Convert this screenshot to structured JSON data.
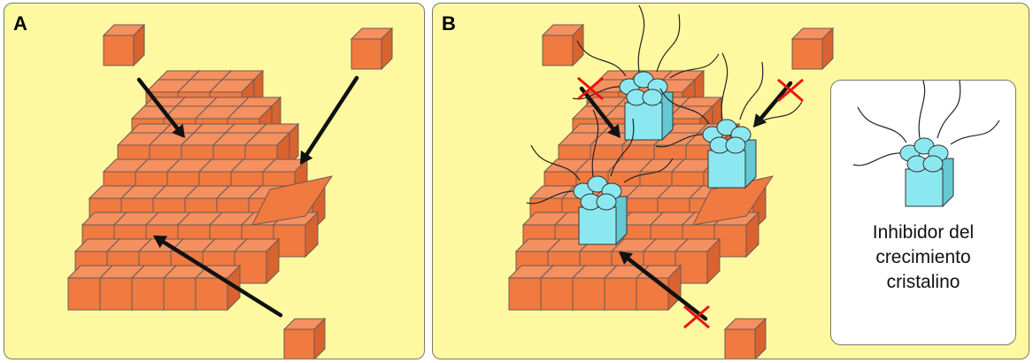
{
  "panels": [
    {
      "label": "A"
    },
    {
      "label": "B"
    }
  ],
  "legend": {
    "lines": [
      "Inhibidor del",
      "crecimiento",
      "cristalino"
    ]
  },
  "colors": {
    "background": "#fef9a0",
    "cube_front": "#f07a40",
    "cube_top": "#f59060",
    "cube_side": "#d9632e",
    "inhibitor": "#8ce8f0",
    "blocked_mark": "#ee1111",
    "arrow": "#111111"
  }
}
